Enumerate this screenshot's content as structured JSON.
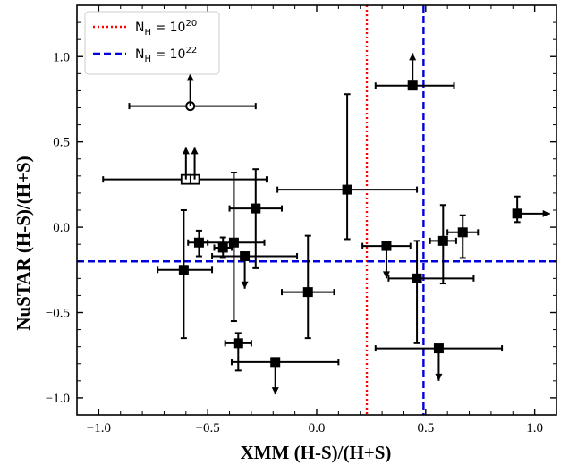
{
  "chart_data": {
    "type": "scatter",
    "xlabel": "XMM (H-S)/(H+S)",
    "ylabel": "NuSTAR (H-S)/(H+S)",
    "xlim": [
      -1.1,
      1.1
    ],
    "ylim": [
      -1.1,
      1.3
    ],
    "xticks": [
      -1.0,
      -0.5,
      0.0,
      0.5,
      1.0
    ],
    "xtick_labels": [
      "−1.0",
      "−0.5",
      "0.0",
      "0.5",
      "1.0"
    ],
    "yticks": [
      -1.0,
      -0.5,
      0.0,
      0.5,
      1.0
    ],
    "ytick_labels": [
      "−1.0",
      "−0.5",
      "0.0",
      "0.5",
      "1.0"
    ],
    "grid": false,
    "legend_position": "top-left",
    "legend": [
      {
        "label_base": "N",
        "label_sub": "H",
        "label_rest": " = 10",
        "label_sup": "20",
        "style": "dotted",
        "color": "#ff0000"
      },
      {
        "label_base": "N",
        "label_sub": "H",
        "label_rest": " = 10",
        "label_sup": "22",
        "style": "dashed",
        "color": "#0000dd"
      }
    ],
    "reference_lines": [
      {
        "orientation": "vertical",
        "x": 0.23,
        "style": "dotted",
        "color": "#ff0000",
        "legend_index": 0
      },
      {
        "orientation": "vertical",
        "x": 0.49,
        "style": "dashed",
        "color": "#0000dd",
        "legend_index": 1
      },
      {
        "orientation": "horizontal",
        "y": -0.2,
        "style": "dashed",
        "color": "#0000dd",
        "legend_index": 1
      }
    ],
    "series": [
      {
        "marker": "square-filled",
        "points": [
          {
            "x": 0.44,
            "y": 0.83,
            "xerr": [
              0.17,
              0.19
            ],
            "yerr": [
              0,
              0
            ],
            "y_lower_limit": true
          },
          {
            "x": 0.14,
            "y": 0.22,
            "xerr": [
              0.32,
              0.32
            ],
            "yerr": [
              0.29,
              0.56
            ]
          },
          {
            "x": -0.28,
            "y": 0.11,
            "xerr": [
              0.12,
              0.12
            ],
            "yerr": [
              0.35,
              0.23
            ]
          },
          {
            "x": -0.61,
            "y": -0.25,
            "xerr": [
              0.12,
              0.13
            ],
            "yerr": [
              0.4,
              0.35
            ]
          },
          {
            "x": -0.54,
            "y": -0.09,
            "xerr": [
              0.05,
              0.04
            ],
            "yerr": [
              0.08,
              0.07
            ]
          },
          {
            "x": -0.43,
            "y": -0.12,
            "xerr": [
              0.04,
              0.04
            ],
            "yerr": [
              0.06,
              0.06
            ]
          },
          {
            "x": -0.38,
            "y": -0.09,
            "xerr": [
              0.16,
              0.14
            ],
            "yerr": [
              0.46,
              0.41
            ]
          },
          {
            "x": -0.33,
            "y": -0.17,
            "xerr": [
              0.15,
              0.24
            ],
            "yerr": [
              0,
              0
            ],
            "y_upper_limit": true
          },
          {
            "x": -0.04,
            "y": -0.38,
            "xerr": [
              0.12,
              0.12
            ],
            "yerr": [
              0.27,
              0.33
            ]
          },
          {
            "x": -0.36,
            "y": -0.68,
            "xerr": [
              0.06,
              0.06
            ],
            "yerr": [
              0.16,
              0.06
            ]
          },
          {
            "x": -0.19,
            "y": -0.79,
            "xerr": [
              0.2,
              0.29
            ],
            "yerr": [
              0,
              0
            ],
            "y_upper_limit": true
          },
          {
            "x": 0.32,
            "y": -0.11,
            "xerr": [
              0.11,
              0.11
            ],
            "yerr": [
              0,
              0
            ],
            "y_upper_limit": true
          },
          {
            "x": 0.46,
            "y": -0.3,
            "xerr": [
              0.13,
              0.26
            ],
            "yerr": [
              0.38,
              0.22
            ]
          },
          {
            "x": 0.58,
            "y": -0.08,
            "xerr": [
              0.06,
              0.06
            ],
            "yerr": [
              0.25,
              0.21
            ]
          },
          {
            "x": 0.67,
            "y": -0.03,
            "xerr": [
              0.07,
              0.07
            ],
            "yerr": [
              0.15,
              0.1
            ]
          },
          {
            "x": 0.56,
            "y": -0.71,
            "xerr": [
              0.29,
              0.29
            ],
            "yerr": [
              0,
              0
            ],
            "y_upper_limit": true
          },
          {
            "x": 0.92,
            "y": 0.08,
            "xerr": [
              0,
              0
            ],
            "yerr": [
              0.05,
              0.1
            ],
            "x_lower_limit": true
          }
        ]
      },
      {
        "marker": "square-open",
        "points": [
          {
            "x": -0.56,
            "y": 0.28,
            "xerr": [
              0.42,
              0.33
            ],
            "yerr": [
              0,
              0
            ],
            "y_lower_limit": true
          },
          {
            "x": -0.6,
            "y": 0.28,
            "xerr": [
              0,
              0
            ],
            "yerr": [
              0,
              0
            ],
            "y_lower_limit": true
          }
        ]
      },
      {
        "marker": "circle-open",
        "points": [
          {
            "x": -0.58,
            "y": 0.71,
            "xerr": [
              0.28,
              0.3
            ],
            "yerr": [
              0,
              0
            ],
            "y_lower_limit": true
          }
        ]
      }
    ]
  }
}
